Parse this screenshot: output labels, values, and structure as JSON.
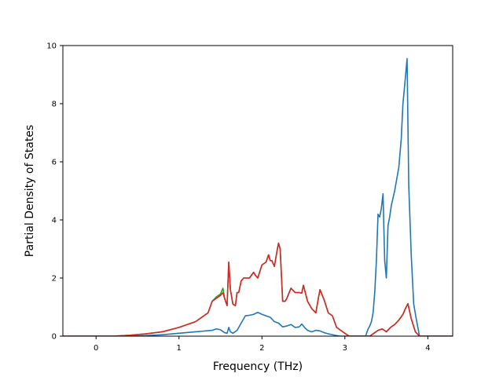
{
  "chart_data": {
    "type": "line",
    "title": "",
    "xlabel": "Frequency (THz)",
    "ylabel": "Partial Density of States",
    "xlim": [
      -0.4,
      4.3
    ],
    "ylim": [
      0,
      10
    ],
    "x_ticks": [
      0,
      1,
      2,
      3,
      4
    ],
    "y_ticks": [
      0,
      2,
      4,
      6,
      8,
      10
    ],
    "grid": false,
    "legend": "none",
    "series": [
      {
        "color": "#1f77b4",
        "x": [
          -0.4,
          0.4,
          0.6,
          0.8,
          1.0,
          1.2,
          1.4,
          1.45,
          1.5,
          1.55,
          1.58,
          1.6,
          1.62,
          1.65,
          1.7,
          1.75,
          1.8,
          1.85,
          1.9,
          1.95,
          2.0,
          2.05,
          2.1,
          2.15,
          2.2,
          2.25,
          2.3,
          2.35,
          2.4,
          2.45,
          2.48,
          2.52,
          2.55,
          2.6,
          2.65,
          2.7,
          2.75,
          2.8,
          2.85,
          2.9,
          2.95,
          3.0,
          3.25,
          3.28,
          3.3,
          3.32,
          3.34,
          3.36,
          3.38,
          3.4,
          3.42,
          3.44,
          3.46,
          3.48,
          3.5,
          3.52,
          3.54,
          3.56,
          3.6,
          3.65,
          3.68,
          3.7,
          3.72,
          3.75,
          3.77,
          3.8,
          3.83,
          3.86,
          3.9,
          3.95,
          4.3
        ],
        "y": [
          0.0,
          0.0,
          0.02,
          0.05,
          0.1,
          0.15,
          0.2,
          0.25,
          0.22,
          0.12,
          0.1,
          0.3,
          0.15,
          0.1,
          0.2,
          0.45,
          0.7,
          0.72,
          0.75,
          0.82,
          0.75,
          0.7,
          0.65,
          0.5,
          0.45,
          0.32,
          0.35,
          0.4,
          0.3,
          0.32,
          0.42,
          0.28,
          0.2,
          0.15,
          0.2,
          0.18,
          0.12,
          0.08,
          0.05,
          0.02,
          0.0,
          0.0,
          0.0,
          0.25,
          0.35,
          0.5,
          0.8,
          1.5,
          2.6,
          4.2,
          4.1,
          4.4,
          4.9,
          2.6,
          2.0,
          3.8,
          4.1,
          4.5,
          5.0,
          5.8,
          6.8,
          8.0,
          8.6,
          9.55,
          5.2,
          2.8,
          1.1,
          0.6,
          0.0,
          0.0,
          0.0
        ]
      },
      {
        "color": "#2ca02c",
        "x": [
          -0.4,
          0.2,
          0.4,
          0.6,
          0.8,
          1.0,
          1.2,
          1.35,
          1.4,
          1.45,
          1.5,
          1.53,
          1.55,
          1.58,
          1.6,
          1.62,
          1.65,
          1.68,
          1.7,
          1.72,
          1.75,
          1.78,
          1.8,
          1.85,
          1.9,
          1.92,
          1.95,
          2.0,
          2.05,
          2.08,
          2.1,
          2.12,
          2.15,
          2.18,
          2.2,
          2.22,
          2.25,
          2.28,
          2.3,
          2.35,
          2.4,
          2.45,
          2.48,
          2.5,
          2.55,
          2.6,
          2.65,
          2.68,
          2.7,
          2.75,
          2.8,
          2.85,
          2.9,
          2.95,
          3.0,
          3.05,
          3.3,
          3.35,
          3.4,
          3.45,
          3.5,
          3.55,
          3.6,
          3.65,
          3.7,
          3.73,
          3.76,
          3.8,
          3.85,
          3.9,
          4.3
        ],
        "y": [
          0.0,
          0.0,
          0.03,
          0.08,
          0.15,
          0.3,
          0.5,
          0.8,
          1.2,
          1.35,
          1.45,
          1.65,
          1.3,
          1.05,
          2.55,
          1.6,
          1.1,
          1.05,
          1.5,
          1.5,
          1.9,
          2.0,
          2.0,
          2.0,
          2.2,
          2.1,
          2.0,
          2.45,
          2.55,
          2.8,
          2.6,
          2.6,
          2.4,
          2.9,
          3.2,
          3.0,
          1.2,
          1.2,
          1.3,
          1.65,
          1.5,
          1.5,
          1.48,
          1.75,
          1.2,
          0.95,
          0.8,
          1.3,
          1.6,
          1.25,
          0.8,
          0.7,
          0.3,
          0.2,
          0.1,
          0.0,
          0.0,
          0.1,
          0.2,
          0.25,
          0.15,
          0.3,
          0.4,
          0.55,
          0.75,
          0.95,
          1.12,
          0.6,
          0.15,
          0.0,
          0.0
        ]
      },
      {
        "color": "#d62728",
        "x": [
          -0.4,
          0.2,
          0.4,
          0.6,
          0.8,
          1.0,
          1.2,
          1.35,
          1.4,
          1.45,
          1.5,
          1.53,
          1.55,
          1.58,
          1.6,
          1.62,
          1.65,
          1.68,
          1.7,
          1.72,
          1.75,
          1.78,
          1.8,
          1.85,
          1.9,
          1.92,
          1.95,
          2.0,
          2.05,
          2.08,
          2.1,
          2.12,
          2.15,
          2.18,
          2.2,
          2.22,
          2.25,
          2.28,
          2.3,
          2.35,
          2.4,
          2.45,
          2.48,
          2.5,
          2.55,
          2.6,
          2.65,
          2.68,
          2.7,
          2.75,
          2.8,
          2.85,
          2.9,
          2.95,
          3.0,
          3.05,
          3.3,
          3.35,
          3.4,
          3.45,
          3.5,
          3.55,
          3.6,
          3.65,
          3.7,
          3.73,
          3.76,
          3.8,
          3.85,
          3.9,
          4.3
        ],
        "y": [
          0.0,
          0.0,
          0.03,
          0.08,
          0.15,
          0.3,
          0.5,
          0.8,
          1.2,
          1.3,
          1.4,
          1.5,
          1.3,
          1.05,
          2.55,
          1.6,
          1.1,
          1.05,
          1.5,
          1.5,
          1.9,
          2.0,
          2.0,
          2.0,
          2.2,
          2.1,
          2.0,
          2.45,
          2.55,
          2.8,
          2.6,
          2.6,
          2.4,
          2.9,
          3.2,
          3.0,
          1.2,
          1.2,
          1.3,
          1.65,
          1.5,
          1.5,
          1.48,
          1.75,
          1.2,
          0.95,
          0.8,
          1.3,
          1.6,
          1.25,
          0.8,
          0.7,
          0.3,
          0.2,
          0.1,
          0.0,
          0.0,
          0.1,
          0.2,
          0.25,
          0.15,
          0.3,
          0.4,
          0.55,
          0.75,
          0.95,
          1.12,
          0.6,
          0.15,
          0.0,
          0.0
        ]
      }
    ]
  }
}
